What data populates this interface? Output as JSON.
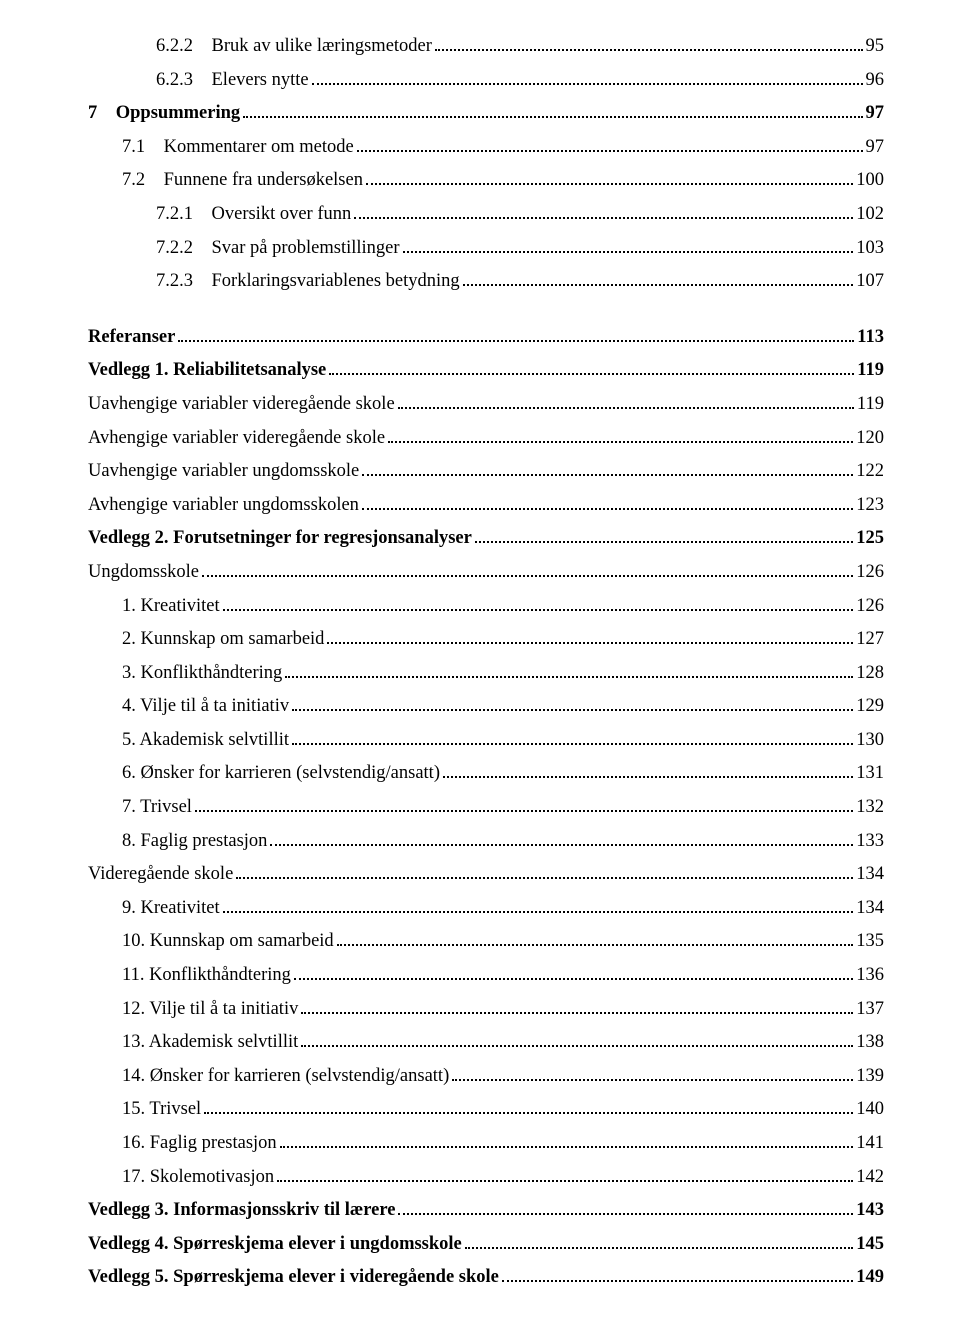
{
  "toc": [
    {
      "indent": 2,
      "bold": false,
      "num": "6.2.2",
      "title": "Bruk av ulike læringsmetoder",
      "page": "95"
    },
    {
      "indent": 2,
      "bold": false,
      "num": "6.2.3",
      "title": "Elevers nytte",
      "page": "96"
    },
    {
      "indent": 0,
      "bold": true,
      "num": "7",
      "title": "Oppsummering",
      "page": "97"
    },
    {
      "indent": 1,
      "bold": false,
      "num": "7.1",
      "title": "Kommentarer om metode",
      "page": "97"
    },
    {
      "indent": 1,
      "bold": false,
      "num": "7.2",
      "title": "Funnene fra undersøkelsen",
      "page": "100"
    },
    {
      "indent": 2,
      "bold": false,
      "num": "7.2.1",
      "title": "Oversikt over funn",
      "page": "102"
    },
    {
      "indent": 2,
      "bold": false,
      "num": "7.2.2",
      "title": "Svar på problemstillinger",
      "page": "103"
    },
    {
      "indent": 2,
      "bold": false,
      "num": "7.2.3",
      "title": "Forklaringsvariablenes betydning",
      "page": "107"
    },
    {
      "spacer": true
    },
    {
      "indent": 0,
      "bold": true,
      "num": "",
      "title": "Referanser",
      "page": "113"
    },
    {
      "indent": 0,
      "bold": true,
      "num": "",
      "title": "Vedlegg 1. Reliabilitetsanalyse",
      "page": "119"
    },
    {
      "indent": 0,
      "bold": false,
      "num": "",
      "title": "Uavhengige variabler videregående skole",
      "page": "119"
    },
    {
      "indent": 0,
      "bold": false,
      "num": "",
      "title": "Avhengige variabler videregående skole",
      "page": "120"
    },
    {
      "indent": 0,
      "bold": false,
      "num": "",
      "title": "Uavhengige variabler ungdomsskole",
      "page": "122"
    },
    {
      "indent": 0,
      "bold": false,
      "num": "",
      "title": "Avhengige variabler ungdomsskolen",
      "page": "123"
    },
    {
      "indent": 0,
      "bold": true,
      "num": "",
      "title": "Vedlegg 2. Forutsetninger for regresjonsanalyser",
      "page": "125"
    },
    {
      "indent": 0,
      "bold": false,
      "num": "",
      "title": "Ungdomsskole",
      "page": "126"
    },
    {
      "indent": 1,
      "bold": false,
      "num": "",
      "title": "1. Kreativitet",
      "page": "126"
    },
    {
      "indent": 1,
      "bold": false,
      "num": "",
      "title": "2. Kunnskap om samarbeid",
      "page": "127"
    },
    {
      "indent": 1,
      "bold": false,
      "num": "",
      "title": "3. Konflikthåndtering",
      "page": "128"
    },
    {
      "indent": 1,
      "bold": false,
      "num": "",
      "title": "4. Vilje til å ta initiativ",
      "page": "129"
    },
    {
      "indent": 1,
      "bold": false,
      "num": "",
      "title": "5. Akademisk selvtillit",
      "page": "130"
    },
    {
      "indent": 1,
      "bold": false,
      "num": "",
      "title": "6. Ønsker for karrieren (selvstendig/ansatt)",
      "page": "131"
    },
    {
      "indent": 1,
      "bold": false,
      "num": "",
      "title": "7. Trivsel",
      "page": "132"
    },
    {
      "indent": 1,
      "bold": false,
      "num": "",
      "title": "8. Faglig prestasjon",
      "page": "133"
    },
    {
      "indent": 0,
      "bold": false,
      "num": "",
      "title": "Videregående skole",
      "page": "134"
    },
    {
      "indent": 1,
      "bold": false,
      "num": "",
      "title": "9. Kreativitet",
      "page": "134"
    },
    {
      "indent": 1,
      "bold": false,
      "num": "",
      "title": "10. Kunnskap om samarbeid",
      "page": "135"
    },
    {
      "indent": 1,
      "bold": false,
      "num": "",
      "title": "11. Konflikthåndtering",
      "page": "136"
    },
    {
      "indent": 1,
      "bold": false,
      "num": "",
      "title": "12. Vilje til å ta initiativ",
      "page": "137"
    },
    {
      "indent": 1,
      "bold": false,
      "num": "",
      "title": "13. Akademisk selvtillit",
      "page": "138"
    },
    {
      "indent": 1,
      "bold": false,
      "num": "",
      "title": "14. Ønsker for karrieren (selvstendig/ansatt)",
      "page": "139"
    },
    {
      "indent": 1,
      "bold": false,
      "num": "",
      "title": "15. Trivsel",
      "page": "140"
    },
    {
      "indent": 1,
      "bold": false,
      "num": "",
      "title": "16. Faglig prestasjon",
      "page": "141"
    },
    {
      "indent": 1,
      "bold": false,
      "num": "",
      "title": "17. Skolemotivasjon",
      "page": "142"
    },
    {
      "indent": 0,
      "bold": true,
      "num": "",
      "title": "Vedlegg 3. Informasjonsskriv til lærere",
      "page": "143"
    },
    {
      "indent": 0,
      "bold": true,
      "num": "",
      "title": "Vedlegg 4. Spørreskjema elever i ungdomsskole",
      "page": "145"
    },
    {
      "indent": 0,
      "bold": true,
      "num": "",
      "title": "Vedlegg 5. Spørreskjema elever i videregående skole",
      "page": "149"
    }
  ]
}
